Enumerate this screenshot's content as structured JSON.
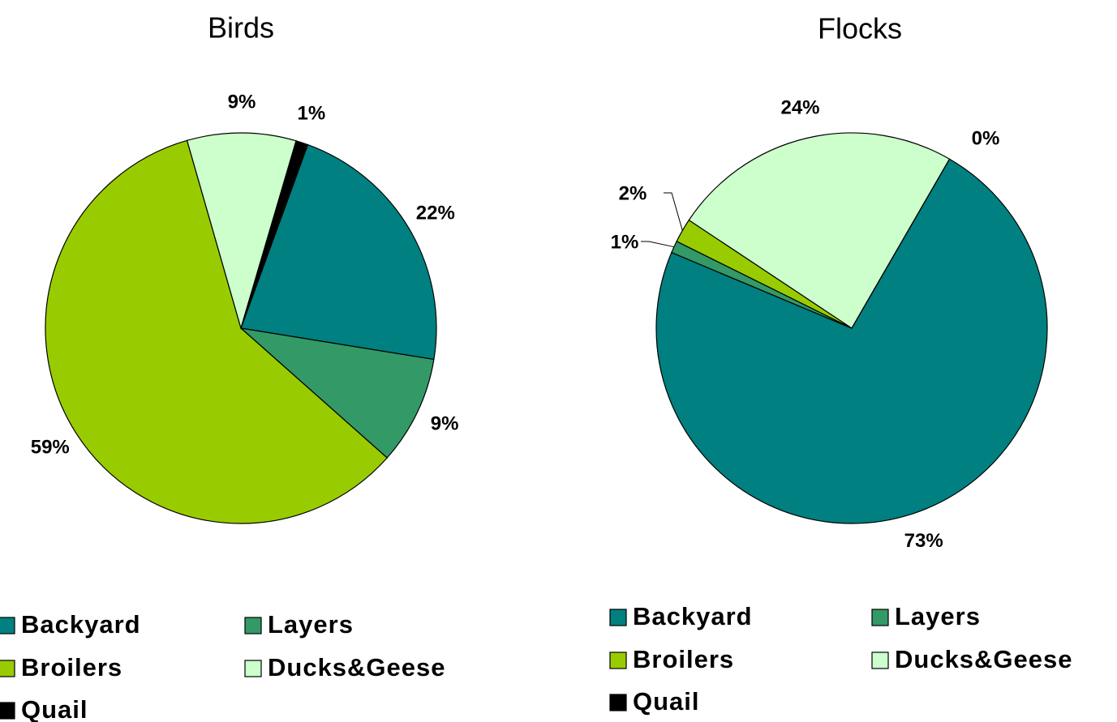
{
  "chart_data": [
    {
      "type": "pie",
      "title": "Birds",
      "categories": [
        "Backyard",
        "Layers",
        "Broilers",
        "Ducks&Geese",
        "Quail"
      ],
      "values": [
        22,
        9,
        59,
        9,
        1
      ],
      "value_labels": [
        "22%",
        "9%",
        "59%",
        "9%",
        "1%"
      ],
      "colors": [
        "#008080",
        "#339966",
        "#99cc00",
        "#ccffcc",
        "#000000"
      ],
      "legend": "bottom"
    },
    {
      "type": "pie",
      "title": "Flocks",
      "categories": [
        "Backyard",
        "Layers",
        "Broilers",
        "Ducks&Geese",
        "Quail"
      ],
      "values": [
        73,
        1,
        2,
        24,
        0
      ],
      "value_labels": [
        "73%",
        "1%",
        "2%",
        "24%",
        "0%"
      ],
      "colors": [
        "#008080",
        "#339966",
        "#99cc00",
        "#ccffcc",
        "#000000"
      ],
      "legend": "bottom"
    }
  ]
}
